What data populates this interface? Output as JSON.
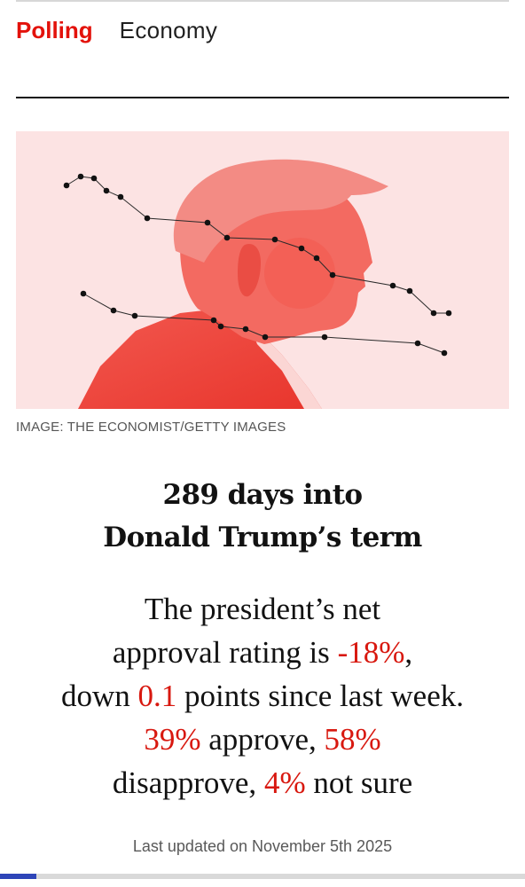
{
  "nav": {
    "items": [
      {
        "label": "Polling",
        "active": true
      },
      {
        "label": "Economy",
        "active": false
      }
    ]
  },
  "hero": {
    "alt": "Illustration of Donald Trump in profile with polling trend lines",
    "caption": "IMAGE: THE ECONOMIST/GETTY IMAGES",
    "tint": "#f04438",
    "background": "#fce3e3"
  },
  "headline": {
    "line1": "289 days into",
    "line2": "Donald Trump’s term"
  },
  "summary": {
    "p1": "The president’s net",
    "p2": "approval rating is ",
    "net": "-18%",
    "p3": ",",
    "p4": "down ",
    "change": "0.1",
    "p5": " points since last week.",
    "approve": "39%",
    "p6": " approve, ",
    "disapprove": "58%",
    "p7": "disapprove, ",
    "unsure": "4%",
    "p8": " not sure"
  },
  "updated": "Last updated on November 5th 2025",
  "reading_progress": 0.07,
  "colors": {
    "accent_red": "#e3120b",
    "highlight_red": "#d8180f",
    "progress_blue": "#2e45b8"
  }
}
